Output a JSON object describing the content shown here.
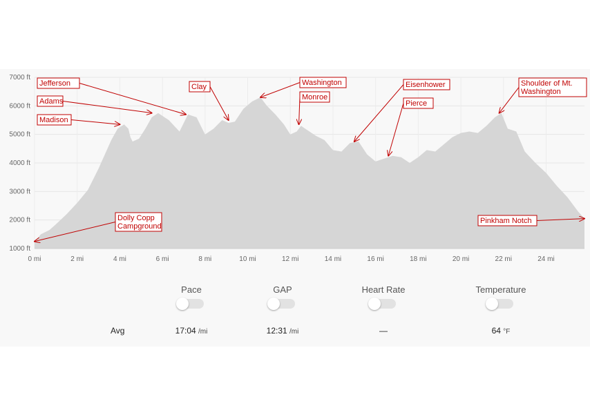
{
  "chart_data": {
    "type": "area",
    "title": "",
    "xlabel": "",
    "ylabel": "",
    "xlim": [
      0,
      25.8
    ],
    "ylim": [
      1000,
      7000
    ],
    "y_tick_labels": [
      "1000 ft",
      "2000 ft",
      "3000 ft",
      "4000 ft",
      "5000 ft",
      "6000 ft",
      "7000 ft"
    ],
    "y_ticks": [
      1000,
      2000,
      3000,
      4000,
      5000,
      6000,
      7000
    ],
    "x_tick_labels": [
      "0 mi",
      "2 mi",
      "4 mi",
      "6 mi",
      "8 mi",
      "10 mi",
      "12 mi",
      "14 mi",
      "16 mi",
      "18 mi",
      "20 mi",
      "22 mi",
      "24 mi"
    ],
    "x_ticks": [
      0,
      2,
      4,
      6,
      8,
      10,
      12,
      14,
      16,
      18,
      20,
      22,
      24
    ],
    "grid": true,
    "fill_color": "#d6d6d6",
    "annotation_color": "#c00000",
    "series": [
      {
        "x": [
          0,
          0.3,
          0.7,
          1.0,
          1.5,
          2.0,
          2.5,
          3.0,
          3.3,
          3.6,
          3.9,
          4.2,
          4.4,
          4.5,
          4.6,
          4.9,
          5.2,
          5.5,
          5.8,
          6.3,
          6.8,
          7.2,
          7.6,
          8.0,
          8.4,
          8.8,
          9.1,
          9.4,
          9.8,
          10.2,
          10.6,
          10.9,
          11.3,
          11.7,
          12.0,
          12.3,
          12.5,
          12.8,
          13.2,
          13.6,
          14.0,
          14.4,
          14.8,
          15.2,
          15.6,
          16.0,
          16.4,
          16.8,
          17.2,
          17.6,
          18.0,
          18.4,
          18.8,
          19.2,
          19.6,
          20.0,
          20.4,
          20.8,
          21.2,
          21.6,
          21.9,
          22.2,
          22.6,
          23.0,
          23.5,
          24.0,
          24.5,
          25.0,
          25.5,
          25.8
        ],
        "y": [
          1250,
          1500,
          1650,
          1850,
          2200,
          2600,
          3050,
          3800,
          4300,
          4800,
          5200,
          5350,
          5200,
          4900,
          4750,
          4850,
          5200,
          5600,
          5750,
          5500,
          5100,
          5700,
          5600,
          5000,
          5200,
          5500,
          5400,
          5450,
          5900,
          6150,
          6300,
          6000,
          5700,
          5350,
          5000,
          5100,
          5300,
          5150,
          4950,
          4800,
          4450,
          4400,
          4700,
          4750,
          4300,
          4050,
          4150,
          4250,
          4200,
          4000,
          4200,
          4450,
          4400,
          4650,
          4900,
          5050,
          5100,
          5050,
          5300,
          5600,
          5750,
          5200,
          5100,
          4400,
          4000,
          3650,
          3200,
          2800,
          2300,
          2050
        ]
      }
    ],
    "annotations": [
      {
        "lines": [
          "Jefferson"
        ],
        "target": [
          7.1,
          5700
        ]
      },
      {
        "lines": [
          "Adams"
        ],
        "target": [
          5.5,
          5750
        ]
      },
      {
        "lines": [
          "Madison"
        ],
        "target": [
          4.0,
          5350
        ]
      },
      {
        "lines": [
          "Clay"
        ],
        "target": [
          9.1,
          5500
        ]
      },
      {
        "lines": [
          "Washington"
        ],
        "target": [
          10.6,
          6300
        ]
      },
      {
        "lines": [
          "Monroe"
        ],
        "target": [
          12.4,
          5350
        ]
      },
      {
        "lines": [
          "Eisenhower"
        ],
        "target": [
          15.0,
          4750
        ]
      },
      {
        "lines": [
          "Pierce"
        ],
        "target": [
          16.6,
          4250
        ]
      },
      {
        "lines": [
          "Shoulder of Mt.",
          "Washington"
        ],
        "target": [
          21.8,
          5750
        ]
      },
      {
        "lines": [
          "Dolly Copp",
          "Campground"
        ],
        "target": [
          0,
          1250
        ]
      },
      {
        "lines": [
          "Pinkham Notch"
        ],
        "target": [
          25.8,
          2050
        ]
      }
    ]
  },
  "stats": {
    "headers": {
      "pace": "Pace",
      "gap": "GAP",
      "heart_rate": "Heart Rate",
      "temperature": "Temperature"
    },
    "avg_label": "Avg",
    "pace": {
      "value": "17:04",
      "unit": "/mi"
    },
    "gap": {
      "value": "12:31",
      "unit": "/mi"
    },
    "heart_rate": {
      "value": "—"
    },
    "temperature": {
      "value": "64",
      "unit": "°F"
    }
  }
}
